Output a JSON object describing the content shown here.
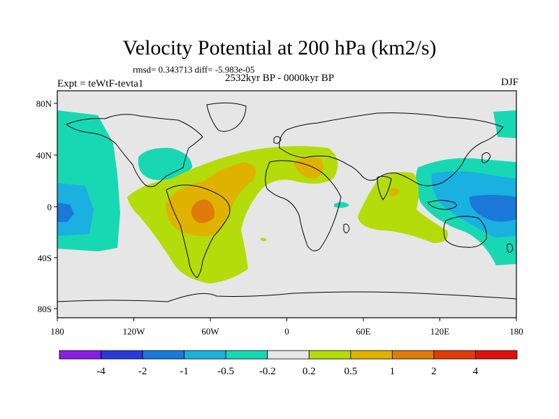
{
  "title": "Velocity Potential at 200 hPa (km2/s)",
  "stats": "rmsd= 0.343713 diff= -5.983e-05",
  "expt": "Expt = teWtF-tevta1",
  "period": "2532kyr BP - 0000kyr BP",
  "season": "DJF",
  "lat_labels": [
    "80N",
    "40N",
    "0",
    "40S",
    "80S"
  ],
  "lon_labels": [
    "180",
    "120W",
    "60W",
    "0",
    "60E",
    "120E",
    "180"
  ],
  "colorbar": {
    "labels": [
      "-4",
      "-2",
      "-1",
      "-0.5",
      "-0.2",
      "0.2",
      "0.5",
      "1",
      "2",
      "4"
    ],
    "colors": [
      "#8a1ee6",
      "#2a3ad8",
      "#1a78d8",
      "#1ab0e0",
      "#18d8b4",
      "#e6e6e6",
      "#b4dc0a",
      "#e0b200",
      "#e07a0a",
      "#e03c0a",
      "#e01010"
    ]
  }
}
